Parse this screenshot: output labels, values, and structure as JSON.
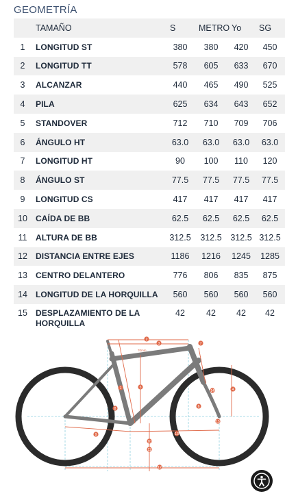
{
  "section_title": "GEOMETRÍA",
  "table": {
    "columns": [
      "TAMAÑO",
      "S",
      "METRO",
      "Yo",
      "SG"
    ],
    "rows": [
      {
        "n": "1",
        "label": "LONGITUD ST",
        "s": "380",
        "m": "380",
        "l": "420",
        "xl": "450"
      },
      {
        "n": "2",
        "label": "LONGITUD TT",
        "s": "578",
        "m": "605",
        "l": "633",
        "xl": "670"
      },
      {
        "n": "3",
        "label": "ALCANZAR",
        "s": "440",
        "m": "465",
        "l": "490",
        "xl": "525"
      },
      {
        "n": "4",
        "label": "PILA",
        "s": "625",
        "m": "634",
        "l": "643",
        "xl": "652"
      },
      {
        "n": "5",
        "label": "STANDOVER",
        "s": "712",
        "m": "710",
        "l": "709",
        "xl": "706"
      },
      {
        "n": "6",
        "label": "ÁNGULO HT",
        "s": "63.0",
        "m": "63.0",
        "l": "63.0",
        "xl": "63.0"
      },
      {
        "n": "7",
        "label": "LONGITUD HT",
        "s": "90",
        "m": "100",
        "l": "110",
        "xl": "120"
      },
      {
        "n": "8",
        "label": "ÁNGULO ST",
        "s": "77.5",
        "m": "77.5",
        "l": "77.5",
        "xl": "77.5"
      },
      {
        "n": "9",
        "label": "LONGITUD CS",
        "s": "417",
        "m": "417",
        "l": "417",
        "xl": "417"
      },
      {
        "n": "10",
        "label": "CAÍDA DE BB",
        "s": "62.5",
        "m": "62.5",
        "l": "62.5",
        "xl": "62.5"
      },
      {
        "n": "11",
        "label": "ALTURA DE BB",
        "s": "312.5",
        "m": "312.5",
        "l": "312.5",
        "xl": "312.5"
      },
      {
        "n": "12",
        "label": "DISTANCIA ENTRE EJES",
        "s": "1186",
        "m": "1216",
        "l": "1245",
        "xl": "1285"
      },
      {
        "n": "13",
        "label": "CENTRO DELANTERO",
        "s": "776",
        "m": "806",
        "l": "835",
        "xl": "875"
      },
      {
        "n": "14",
        "label": "LONGITUD DE LA HORQUILLA",
        "s": "560",
        "m": "560",
        "l": "560",
        "xl": "560"
      },
      {
        "n": "15",
        "label": "DESPLAZAMIENTO DE LA HORQUILLA",
        "s": "42",
        "m": "42",
        "l": "42",
        "xl": "42"
      }
    ]
  },
  "diagram": {
    "markers": [
      "1",
      "2",
      "3",
      "4",
      "5",
      "6",
      "7",
      "8",
      "9",
      "10",
      "11",
      "12",
      "13",
      "14",
      "15"
    ],
    "stem_note": "70mm"
  },
  "colors": {
    "heading": "#3d5170",
    "stripe": "#f0f0f0",
    "frame": "#7b7b7b",
    "tire": "#2b2b2b",
    "measure": "#e06a4a",
    "guide": "#8fd0e0"
  },
  "accessibility_icon": "accessibility-icon"
}
